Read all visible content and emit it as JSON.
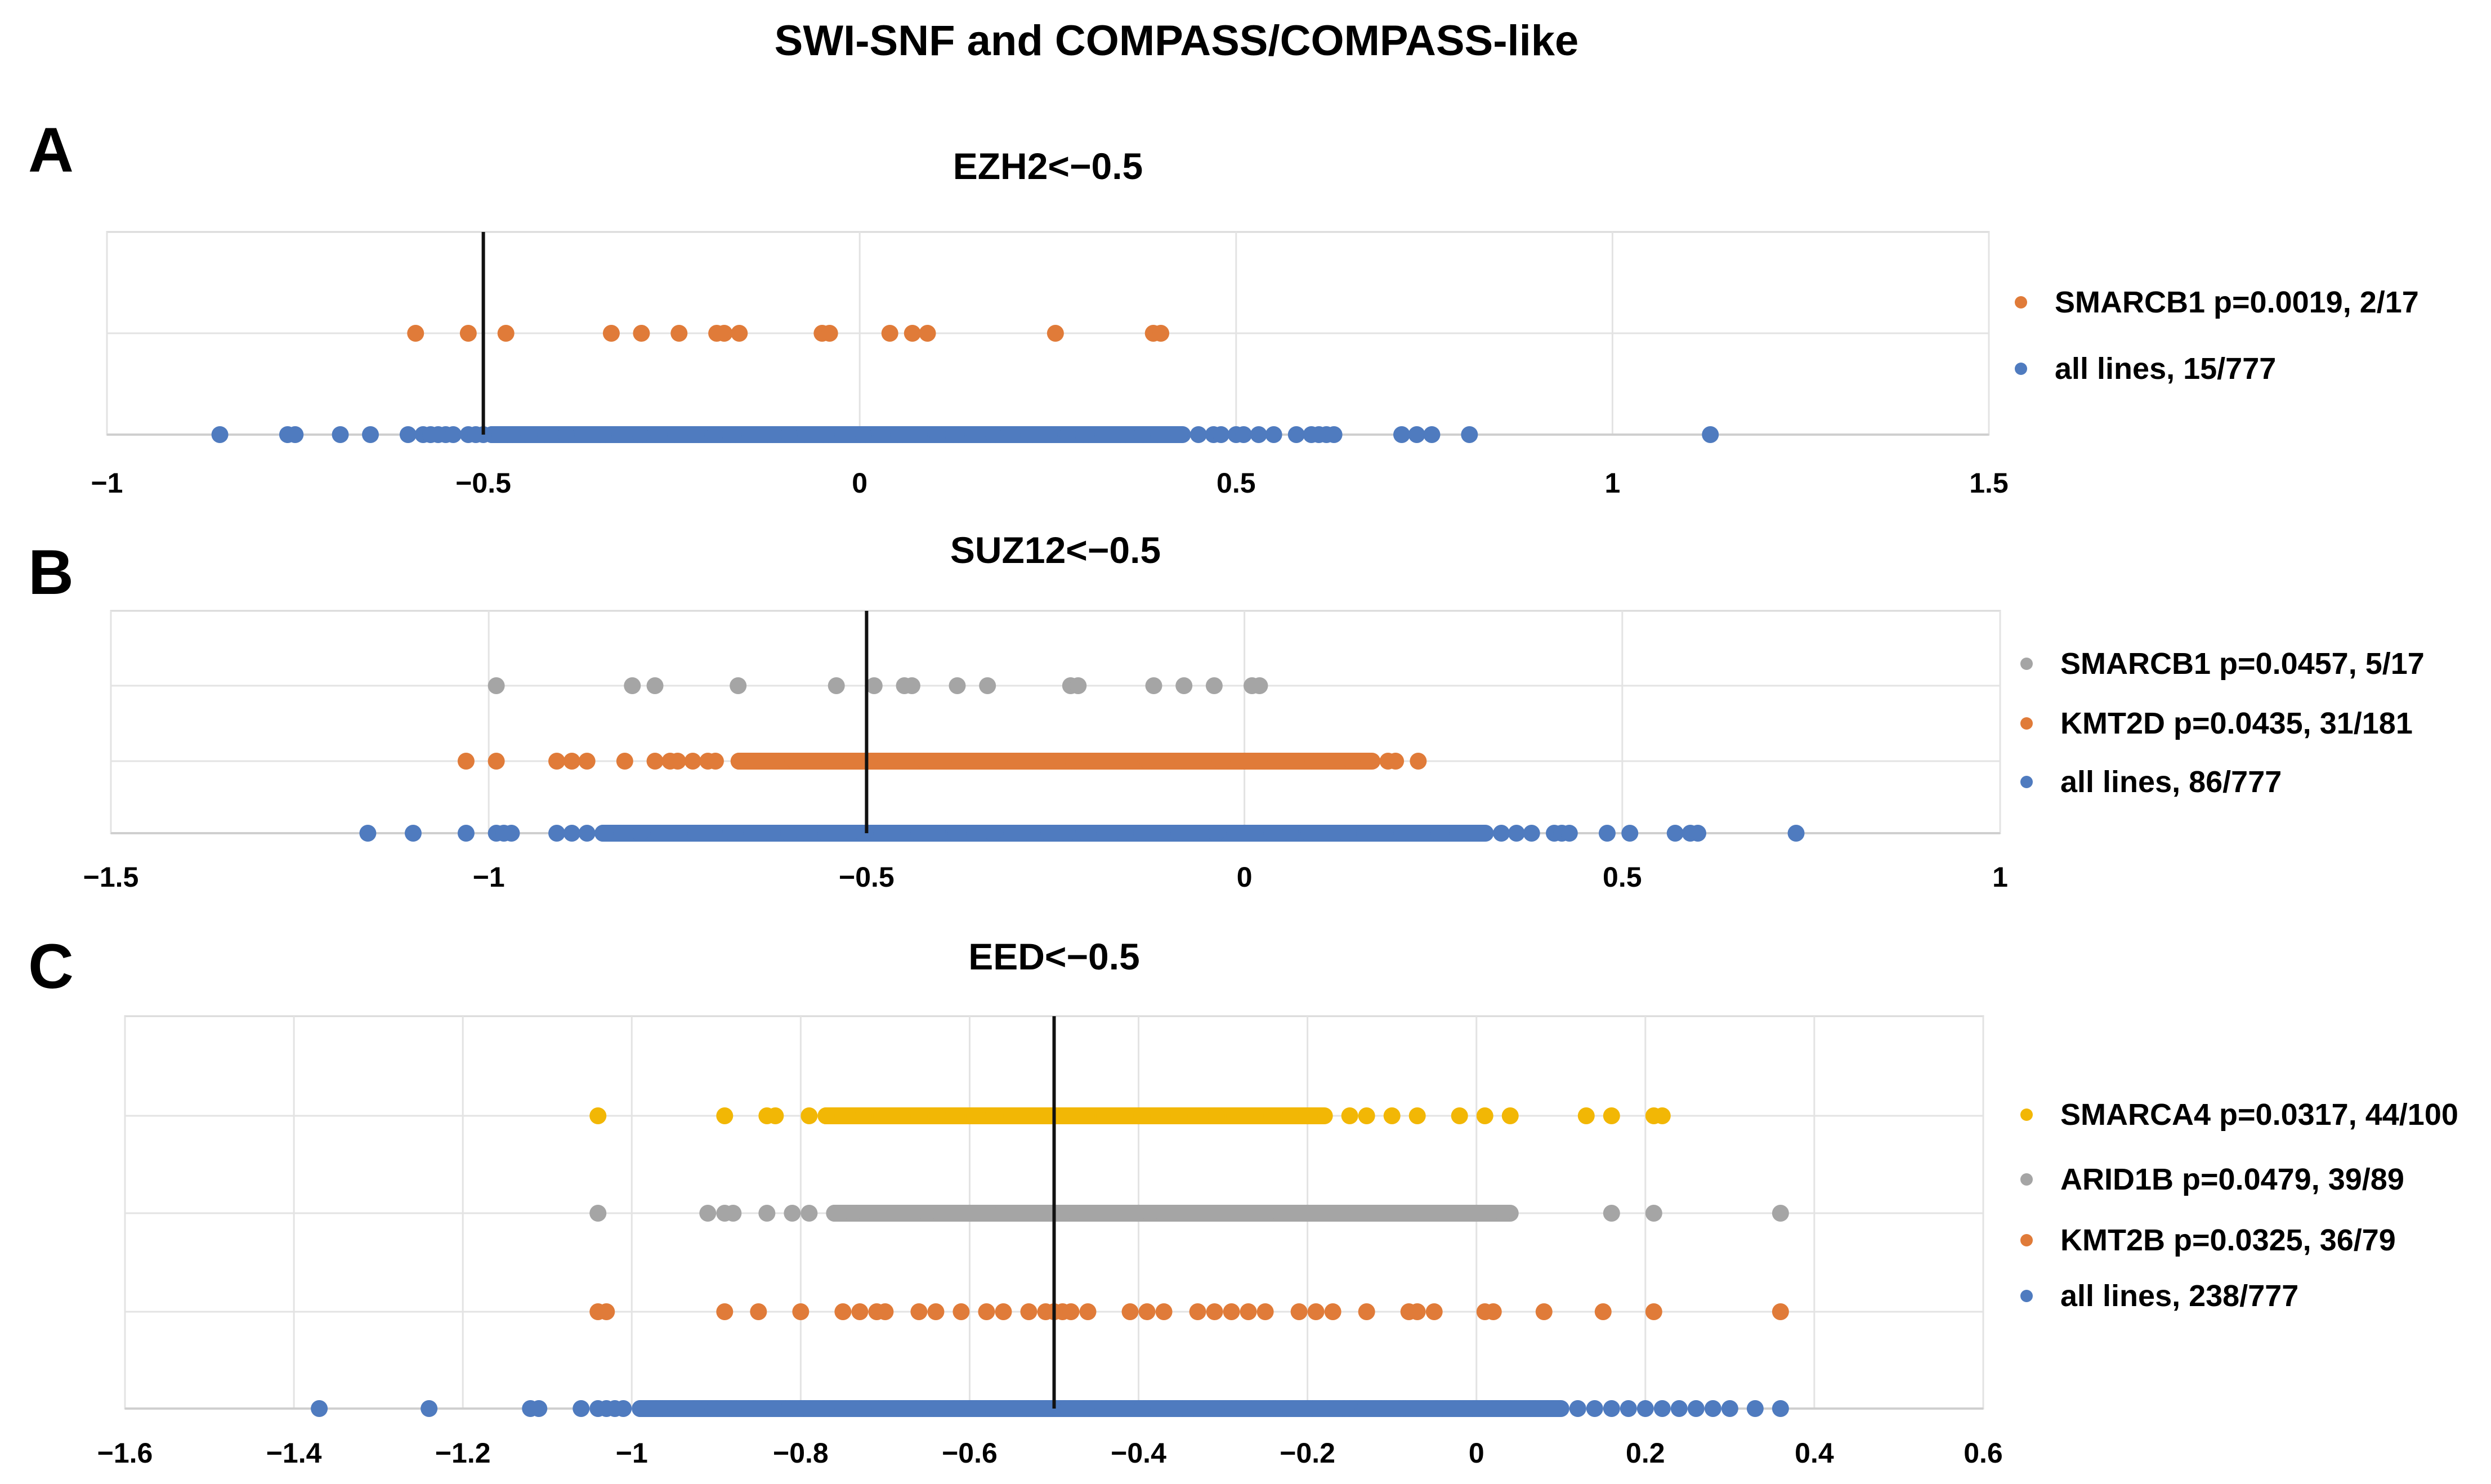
{
  "figure_title": "SWI-SNF and COMPASS/COMPASS-like",
  "colors": {
    "blue": "#4f7bbf",
    "orange": "#e07b39",
    "gray": "#a5a5a5",
    "yellow": "#f2b705"
  },
  "chart_data": [
    {
      "type": "scatter",
      "letter": "A",
      "title": "EZH2<−0.5",
      "xlim": [
        -1,
        1.5
      ],
      "ticks": [
        -1,
        -0.5,
        0,
        0.5,
        1,
        1.5
      ],
      "tick_labels": [
        "−1",
        "−0.5",
        "0",
        "0.5",
        "1",
        "1.5"
      ],
      "threshold": -0.5,
      "grid": true,
      "legend_position": "right",
      "series": [
        {
          "name": "SMARCB1 p=0.0019, 2/17",
          "color": "#e07b39",
          "values": [
            -0.59,
            -0.52,
            -0.47,
            -0.33,
            -0.29,
            -0.24,
            -0.19,
            -0.18,
            -0.16,
            -0.05,
            -0.04,
            0.04,
            0.07,
            0.09,
            0.26,
            0.39,
            0.4
          ]
        },
        {
          "name": "all lines, 15/777",
          "color": "#4f7bbf",
          "dense_from": -0.5,
          "dense_to": 0.44,
          "values": [
            -0.85,
            -0.76,
            -0.75,
            -0.69,
            -0.65,
            -0.6,
            -0.58,
            -0.57,
            -0.56,
            -0.55,
            -0.54,
            -0.52,
            -0.51,
            -0.5,
            0.45,
            0.47,
            0.48,
            0.5,
            0.51,
            0.53,
            0.55,
            0.58,
            0.6,
            0.61,
            0.62,
            0.63,
            0.72,
            0.74,
            0.76,
            0.81,
            1.13
          ]
        }
      ]
    },
    {
      "type": "scatter",
      "letter": "B",
      "title": "SUZ12<−0.5",
      "xlim": [
        -1.5,
        1
      ],
      "ticks": [
        -1.5,
        -1,
        -0.5,
        0,
        0.5,
        1
      ],
      "tick_labels": [
        "−1.5",
        "−1",
        "−0.5",
        "0",
        "0.5",
        "1"
      ],
      "threshold": -0.5,
      "grid": true,
      "legend_position": "right",
      "series": [
        {
          "name": "SMARCB1 p=0.0457, 5/17",
          "color": "#a5a5a5",
          "values": [
            -0.99,
            -0.81,
            -0.78,
            -0.67,
            -0.54,
            -0.49,
            -0.45,
            -0.44,
            -0.38,
            -0.34,
            -0.23,
            -0.22,
            -0.12,
            -0.08,
            -0.04,
            0.01,
            0.02
          ]
        },
        {
          "name": "KMT2D p=0.0435, 31/181",
          "color": "#e07b39",
          "dense_from": -0.68,
          "dense_to": 0.18,
          "values": [
            -1.03,
            -0.99,
            -0.91,
            -0.89,
            -0.87,
            -0.82,
            -0.78,
            -0.76,
            -0.75,
            -0.73,
            -0.71,
            -0.7,
            0.19,
            0.2,
            0.23
          ]
        },
        {
          "name": "all lines, 86/777",
          "color": "#4f7bbf",
          "dense_from": -0.86,
          "dense_to": 0.33,
          "values": [
            -1.16,
            -1.1,
            -1.03,
            -0.99,
            -0.98,
            -0.97,
            -0.91,
            -0.89,
            -0.87,
            0.34,
            0.36,
            0.38,
            0.41,
            0.42,
            0.43,
            0.48,
            0.51,
            0.57,
            0.59,
            0.6,
            0.73
          ]
        }
      ]
    },
    {
      "type": "scatter",
      "letter": "C",
      "title": "EED<−0.5",
      "xlim": [
        -1.6,
        0.6
      ],
      "ticks": [
        -1.6,
        -1.4,
        -1.2,
        -1,
        -0.8,
        -0.6,
        -0.4,
        -0.2,
        0,
        0.2,
        0.4,
        0.6
      ],
      "tick_labels": [
        "−1.6",
        "−1.4",
        "−1.2",
        "−1",
        "−0.8",
        "−0.6",
        "−0.4",
        "−0.2",
        "0",
        "0.2",
        "0.4",
        "0.6"
      ],
      "threshold": -0.5,
      "grid": true,
      "legend_position": "right",
      "series": [
        {
          "name": "SMARCA4 p=0.0317, 44/100",
          "color": "#f2b705",
          "dense_from": -0.78,
          "dense_to": -0.17,
          "values": [
            -1.04,
            -0.89,
            -0.84,
            -0.83,
            -0.79,
            -0.15,
            -0.13,
            -0.1,
            -0.07,
            -0.02,
            0.01,
            0.04,
            0.13,
            0.16,
            0.21,
            0.22
          ]
        },
        {
          "name": "ARID1B p=0.0479, 39/89",
          "color": "#a5a5a5",
          "dense_from": -0.77,
          "dense_to": 0.05,
          "values": [
            -1.04,
            -0.91,
            -0.89,
            -0.88,
            -0.84,
            -0.81,
            -0.79,
            0.16,
            0.21,
            0.36
          ]
        },
        {
          "name": "KMT2B p=0.0325, 36/79",
          "color": "#e07b39",
          "values": [
            -1.04,
            -1.03,
            -0.89,
            -0.85,
            -0.8,
            -0.75,
            -0.73,
            -0.71,
            -0.7,
            -0.66,
            -0.64,
            -0.61,
            -0.58,
            -0.56,
            -0.53,
            -0.51,
            -0.5,
            -0.49,
            -0.48,
            -0.46,
            -0.41,
            -0.39,
            -0.37,
            -0.33,
            -0.31,
            -0.29,
            -0.27,
            -0.25,
            -0.21,
            -0.19,
            -0.17,
            -0.13,
            -0.08,
            -0.07,
            -0.05,
            0.01,
            0.02,
            0.08,
            0.15,
            0.21,
            0.36
          ]
        },
        {
          "name": "all lines, 238/777",
          "color": "#4f7bbf",
          "dense_from": -1.0,
          "dense_to": 0.11,
          "values": [
            -1.37,
            -1.24,
            -1.12,
            -1.11,
            -1.06,
            -1.04,
            -1.03,
            -1.02,
            -1.01,
            0.12,
            0.14,
            0.16,
            0.18,
            0.2,
            0.22,
            0.24,
            0.26,
            0.28,
            0.3,
            0.33,
            0.36
          ]
        }
      ]
    }
  ]
}
